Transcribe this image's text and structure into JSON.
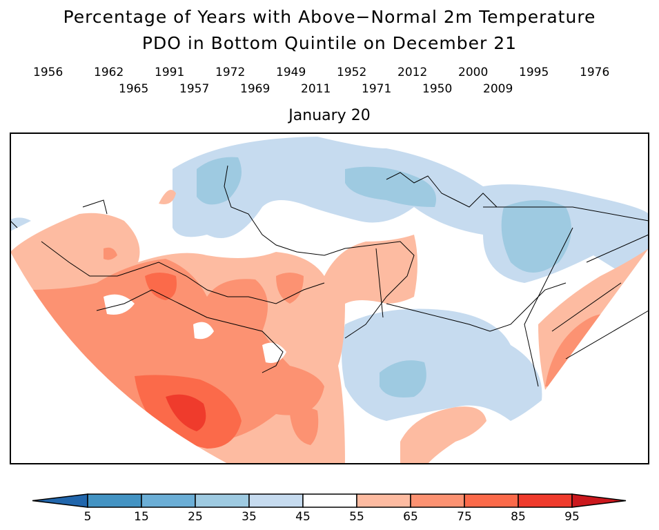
{
  "title": {
    "line1": "Percentage of Years with Above−Normal 2m Temperature",
    "line2": "PDO in Bottom Quintile on December 21",
    "date": "January 20"
  },
  "years": {
    "row1": [
      "1956",
      "1962",
      "1991",
      "1972",
      "1949",
      "1952",
      "2012",
      "2000",
      "1995",
      "1976"
    ],
    "row2": [
      "1965",
      "1957",
      "1969",
      "2011",
      "1971",
      "1950",
      "2009"
    ]
  },
  "colorbar": {
    "labels": [
      "5",
      "15",
      "25",
      "35",
      "45",
      "55",
      "65",
      "75",
      "85",
      "95"
    ],
    "colors": [
      "#2166ac",
      "#4393c3",
      "#6baed6",
      "#9ecae1",
      "#c6dbef",
      "#ffffff",
      "#fdbba1",
      "#fc9272",
      "#fb6a4a",
      "#ef3b2c",
      "#cb181d"
    ]
  }
}
